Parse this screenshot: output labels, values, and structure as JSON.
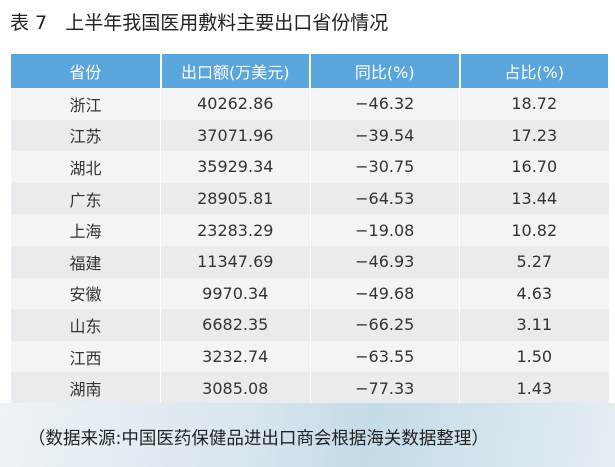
{
  "title": "表 7   上半年我国医用敷料主要出口省份情况",
  "table": {
    "headers": [
      "省份",
      "出口额(万美元)",
      "同比(%)",
      "占比(%)"
    ],
    "rows": [
      [
        "浙江",
        "40262.86",
        "−46.32",
        "18.72"
      ],
      [
        "江苏",
        "37071.96",
        "−39.54",
        "17.23"
      ],
      [
        "湖北",
        "35929.34",
        "−30.75",
        "16.70"
      ],
      [
        "广东",
        "28905.81",
        "−64.53",
        "13.44"
      ],
      [
        "上海",
        "23283.29",
        "−19.08",
        "10.82"
      ],
      [
        "福建",
        "11347.69",
        "−46.93",
        "5.27"
      ],
      [
        "安徽",
        "9970.34",
        "−49.68",
        "4.63"
      ],
      [
        "山东",
        "6682.35",
        "−66.25",
        "3.11"
      ],
      [
        "江西",
        "3232.74",
        "−63.55",
        "1.50"
      ],
      [
        "湖南",
        "3085.08",
        "−77.33",
        "1.43"
      ]
    ]
  },
  "source_note": "（数据来源:中国医药保健品进出口商会根据海关数据整理）",
  "colors": {
    "header_bg": "#5aa6dc",
    "header_text": "#ffffff"
  }
}
